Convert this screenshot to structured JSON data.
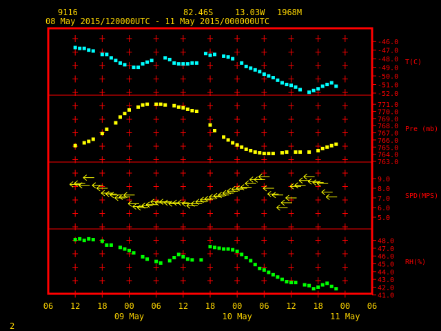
{
  "header": {
    "station": "9116",
    "lat": "82.46S",
    "lon": "13.03W",
    "elev": "1968M",
    "time_range": "08 May 2015/120000UTC - 11 May 2015/000000UTC"
  },
  "page_number": "2",
  "colors": {
    "frame": "#ff0000",
    "text": "#ffd700",
    "temp": "#00ffff",
    "pres": "#ffff00",
    "wind": "#ffff00",
    "rh": "#00ff00"
  },
  "chart_data": [
    {
      "type": "scatter",
      "ylabel": "T(C)",
      "ylim": [
        -52,
        -45.5
      ],
      "yticks": [
        "-46.0",
        "-47.0",
        "-48.0",
        "-49.0",
        "-50.0",
        "-51.0",
        "-52.0"
      ],
      "x_hours": [
        12,
        13,
        14,
        15,
        16,
        18,
        19,
        20,
        21,
        22,
        23,
        1,
        2,
        3,
        4,
        5,
        8,
        9,
        10,
        11,
        12,
        13,
        14,
        15,
        17,
        18,
        19,
        21,
        22,
        23,
        1,
        2,
        3,
        4,
        5,
        6,
        7,
        8,
        9,
        10,
        11,
        12,
        13,
        14,
        16,
        17,
        18,
        19,
        20,
        21,
        22
      ],
      "values": [
        -46.7,
        -46.8,
        -46.8,
        -47.0,
        -47.1,
        -47.5,
        -47.5,
        -47.9,
        -48.2,
        -48.5,
        -48.7,
        -49.0,
        -49.0,
        -48.6,
        -48.4,
        -48.2,
        -47.9,
        -48.1,
        -48.5,
        -48.6,
        -48.6,
        -48.6,
        -48.5,
        -48.5,
        -47.4,
        -47.6,
        -47.5,
        -47.7,
        -47.8,
        -48.0,
        -48.5,
        -48.9,
        -49.1,
        -49.3,
        -49.5,
        -49.8,
        -50.0,
        -50.2,
        -50.5,
        -50.8,
        -51.0,
        -51.1,
        -51.3,
        -51.6,
        -51.9,
        -51.7,
        -51.5,
        -51.2,
        -51.0,
        -50.8,
        -51.2
      ],
      "missing_hours_labels": [],
      "x_start": "06",
      "x_end": "06"
    },
    {
      "type": "scatter",
      "ylabel": "Pre (mb)",
      "ylim": [
        763,
        771.5
      ],
      "yticks": [
        "771.0",
        "770.0",
        "769.0",
        "768.0",
        "767.0",
        "766.0",
        "765.0",
        "764.0",
        "763.0"
      ],
      "x_hours": [
        12,
        14,
        15,
        16,
        18,
        19,
        21,
        22,
        23,
        0,
        2,
        3,
        4,
        6,
        7,
        8,
        10,
        11,
        12,
        13,
        14,
        15,
        18,
        19,
        21,
        22,
        23,
        0,
        1,
        2,
        3,
        4,
        5,
        6,
        7,
        8,
        10,
        11,
        13,
        14,
        16,
        18,
        19,
        20,
        21,
        22
      ],
      "values": [
        765.2,
        765.6,
        765.8,
        766.1,
        766.9,
        767.5,
        768.4,
        769.2,
        769.7,
        770.2,
        770.6,
        770.9,
        771.0,
        771.0,
        771.0,
        770.9,
        770.8,
        770.6,
        770.5,
        770.3,
        770.1,
        770.0,
        768.1,
        767.3,
        766.4,
        766.0,
        765.6,
        765.3,
        765.0,
        764.7,
        764.5,
        764.3,
        764.2,
        764.1,
        764.1,
        764.1,
        764.2,
        764.3,
        764.3,
        764.3,
        764.3,
        764.5,
        764.8,
        765.0,
        765.2,
        765.4
      ],
      "x_start": "06",
      "x_end": "06"
    },
    {
      "type": "scatter",
      "ylabel": "SPD(MPS)",
      "ylim": [
        5,
        9.5
      ],
      "yticks": [
        "9.0",
        "8.0",
        "7.0",
        "6.0",
        "5.0"
      ],
      "x_hours": [
        12,
        13,
        14,
        15,
        17,
        18,
        19,
        20,
        21,
        22,
        23,
        0,
        1,
        2,
        3,
        4,
        5,
        6,
        7,
        8,
        9,
        10,
        11,
        12,
        13,
        14,
        15,
        16,
        17,
        18,
        19,
        20,
        21,
        22,
        23,
        0,
        1,
        2,
        3,
        4,
        5,
        6,
        7,
        8,
        9,
        10,
        11,
        12,
        13,
        14,
        15,
        16,
        17,
        18,
        19,
        20,
        21
      ],
      "values": [
        8.4,
        8.5,
        8.3,
        9.1,
        8.3,
        8.0,
        7.5,
        7.4,
        7.3,
        7.0,
        7.1,
        7.3,
        6.4,
        6.1,
        6.0,
        6.2,
        6.3,
        6.6,
        6.5,
        6.6,
        6.5,
        6.4,
        6.5,
        6.5,
        6.4,
        6.2,
        6.4,
        6.6,
        6.8,
        6.9,
        7.1,
        7.2,
        7.3,
        7.5,
        7.7,
        7.9,
        8.0,
        8.1,
        8.5,
        8.9,
        8.9,
        9.2,
        8.0,
        7.4,
        7.3,
        6.0,
        6.5,
        7.0,
        8.2,
        8.3,
        8.8,
        9.2,
        8.7,
        8.6,
        8.5,
        7.6,
        7.1
      ],
      "x_start": "06",
      "x_end": "06"
    },
    {
      "type": "scatter",
      "ylabel": "RH(%)",
      "ylim": [
        40.8,
        48.5
      ],
      "yticks": [
        "48.0",
        "47.0",
        "46.0",
        "45.0",
        "44.0",
        "43.0",
        "42.0",
        "41.0"
      ],
      "x_hours": [
        12,
        13,
        14,
        15,
        16,
        18,
        19,
        20,
        22,
        23,
        0,
        1,
        3,
        4,
        6,
        7,
        9,
        10,
        11,
        12,
        13,
        14,
        16,
        18,
        19,
        20,
        21,
        22,
        23,
        0,
        1,
        2,
        3,
        4,
        5,
        6,
        7,
        8,
        9,
        10,
        11,
        12,
        13,
        15,
        16,
        17,
        18,
        19,
        20,
        21,
        22
      ],
      "values": [
        48.1,
        48.2,
        48.0,
        48.2,
        48.1,
        47.9,
        47.4,
        47.4,
        47.1,
        46.9,
        46.7,
        46.4,
        45.9,
        45.6,
        45.3,
        45.1,
        45.4,
        45.8,
        46.2,
        45.9,
        45.6,
        45.5,
        45.5,
        47.2,
        47.1,
        47.0,
        46.9,
        46.9,
        46.8,
        46.6,
        46.2,
        45.8,
        45.4,
        44.9,
        44.4,
        44.2,
        43.9,
        43.6,
        43.3,
        43.0,
        42.7,
        42.6,
        42.6,
        42.3,
        42.2,
        41.8,
        42.0,
        42.3,
        42.5,
        42.1,
        41.8
      ],
      "x_start": "06",
      "x_end": "06"
    }
  ],
  "x_axis": {
    "tick_labels": [
      "06",
      "12",
      "18",
      "00",
      "06",
      "12",
      "18",
      "00",
      "06",
      "12",
      "18",
      "00",
      "06"
    ],
    "day_labels": [
      "09 May",
      "10 May",
      "11 May"
    ]
  }
}
